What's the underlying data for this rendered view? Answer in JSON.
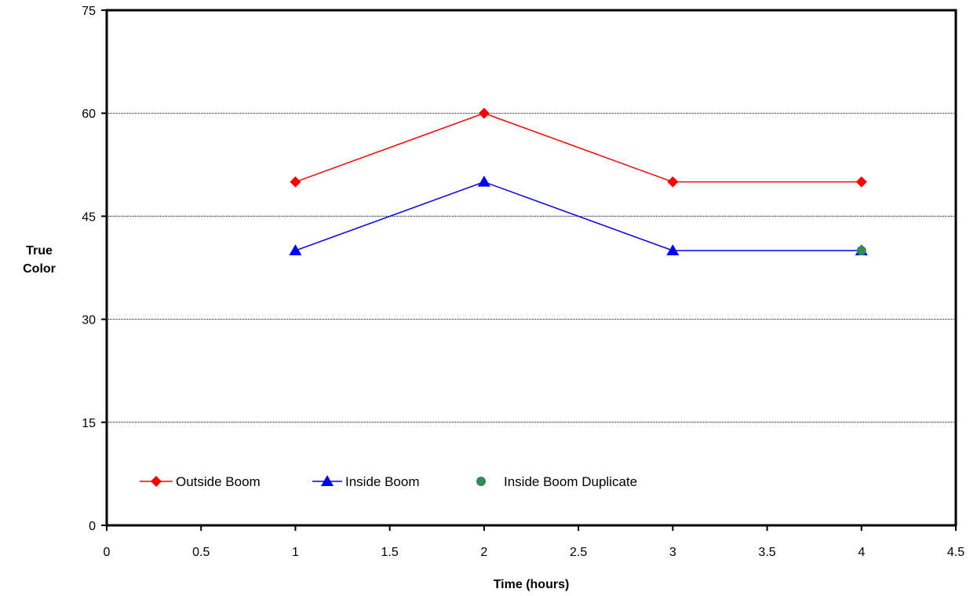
{
  "chart_data": {
    "type": "line",
    "title": "",
    "xlabel": "Time (hours)",
    "ylabel": [
      "True",
      "Color"
    ],
    "xlim": [
      0,
      4.5
    ],
    "ylim": [
      0,
      75
    ],
    "x_ticks": [
      "0",
      "0.5",
      "1",
      "1.5",
      "2",
      "2.5",
      "3",
      "3.5",
      "4",
      "4.5"
    ],
    "y_ticks": [
      "0",
      "15",
      "30",
      "45",
      "60",
      "75"
    ],
    "grid": "horizontal",
    "legend_placement": "bottom-left inside plot",
    "series": [
      {
        "name": "Outside Boom",
        "color": "#ff0000",
        "marker": "diamond",
        "line": true,
        "x": [
          1,
          2,
          3,
          4
        ],
        "y": [
          50,
          60,
          50,
          50
        ]
      },
      {
        "name": "Inside Boom",
        "color": "#0000ff",
        "marker": "triangle",
        "line": true,
        "x": [
          1,
          2,
          3,
          4
        ],
        "y": [
          40,
          50,
          40,
          40
        ]
      },
      {
        "name": "Inside Boom Duplicate",
        "color": "#2e8b57",
        "marker": "circle",
        "line": false,
        "x": [
          4
        ],
        "y": [
          40
        ]
      }
    ]
  }
}
